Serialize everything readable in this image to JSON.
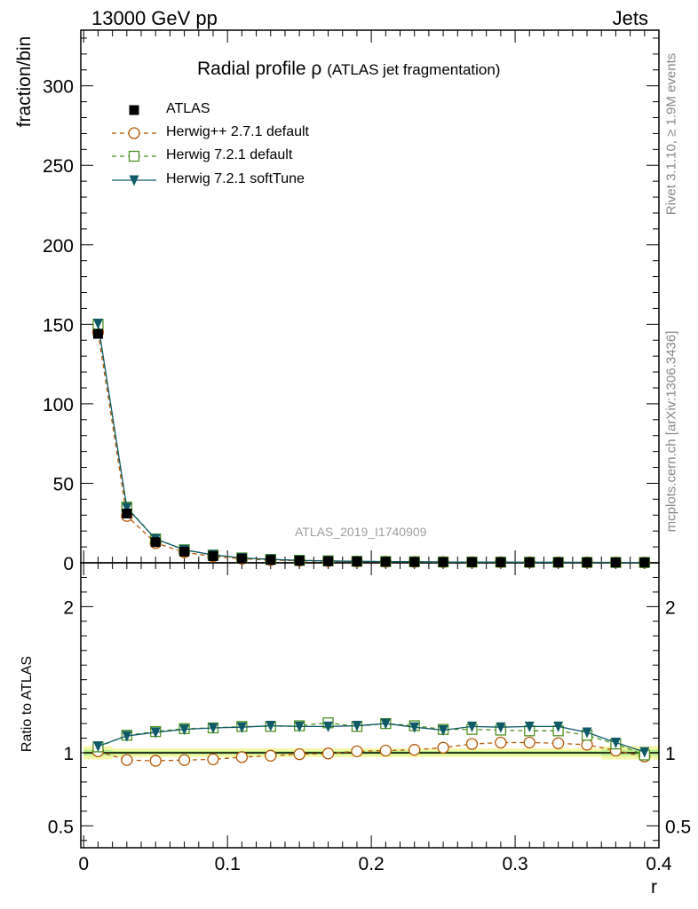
{
  "header": {
    "energy": "13000 GeV pp",
    "process": "Jets"
  },
  "side_text": {
    "rivet": "Rivet 3.1.10, ≥ 1.9M events",
    "mcplots": "mcplots.cern.ch [arXiv:1306.3436]"
  },
  "chart_data": {
    "type": "line",
    "title": "Radial profile ρ",
    "subtitle": "(ATLAS jet fragmentation)",
    "watermark": "ATLAS_2019_I1740909",
    "xlabel": "r",
    "ylabel_top": "fraction/bin",
    "ylabel_bottom": "Ratio to ATLAS",
    "xlim": [
      -0.002,
      0.4
    ],
    "ylim_top": [
      0,
      335
    ],
    "ylim_bottom": [
      0.35,
      2.3
    ],
    "xticks": [
      "0",
      "0.1",
      "0.2",
      "0.3",
      "0.4"
    ],
    "yticks_top": [
      "0",
      "50",
      "100",
      "150",
      "200",
      "250",
      "300"
    ],
    "yticks_bottom": [
      "0.5",
      "1",
      "2"
    ],
    "legend_position": "top-left",
    "x": [
      0.01,
      0.03,
      0.05,
      0.07,
      0.09,
      0.11,
      0.13,
      0.15,
      0.17,
      0.19,
      0.21,
      0.23,
      0.25,
      0.27,
      0.29,
      0.31,
      0.33,
      0.35,
      0.37,
      0.39
    ],
    "series": [
      {
        "name": "ATLAS",
        "color": "#000000",
        "marker": "square-filled",
        "values": [
          144.0,
          31.0,
          13.0,
          7.0,
          4.2,
          2.6,
          1.8,
          1.3,
          1.0,
          0.8,
          0.65,
          0.55,
          0.45,
          0.4,
          0.35,
          0.3,
          0.27,
          0.24,
          0.22,
          0.2
        ],
        "ratio": [
          1,
          1,
          1,
          1,
          1,
          1,
          1,
          1,
          1,
          1,
          1,
          1,
          1,
          1,
          1,
          1,
          1,
          1,
          1,
          1
        ]
      },
      {
        "name": "Herwig++ 2.7.1 default",
        "color": "#b35806",
        "marker": "circle-open",
        "dash": "5,4",
        "values": [
          145.0,
          29.5,
          12.4,
          6.7,
          4.0,
          2.5,
          1.76,
          1.29,
          1.0,
          0.81,
          0.66,
          0.56,
          0.47,
          0.43,
          0.38,
          0.33,
          0.29,
          0.26,
          0.22,
          0.19
        ],
        "ratio": [
          1.01,
          0.95,
          0.945,
          0.95,
          0.955,
          0.97,
          0.98,
          0.99,
          0.995,
          1.01,
          1.015,
          1.02,
          1.035,
          1.06,
          1.07,
          1.07,
          1.065,
          1.055,
          1.015,
          0.975
        ]
      },
      {
        "name": "Herwig 7.2.1 default",
        "color": "#4d9221",
        "marker": "square-open",
        "dash": "5,4",
        "values": [
          150.0,
          35.0,
          15.0,
          8.2,
          4.9,
          3.08,
          2.15,
          1.58,
          1.23,
          0.94,
          0.79,
          0.65,
          0.52,
          0.46,
          0.41,
          0.35,
          0.31,
          0.27,
          0.23,
          0.2
        ],
        "ratio": [
          1.04,
          1.12,
          1.145,
          1.165,
          1.17,
          1.18,
          1.18,
          1.185,
          1.205,
          1.18,
          1.2,
          1.185,
          1.16,
          1.16,
          1.155,
          1.15,
          1.15,
          1.12,
          1.06,
          0.985
        ]
      },
      {
        "name": "Herwig 7.2.1 softTune",
        "color": "#105a68",
        "marker": "triangle-down-filled",
        "dash": "",
        "values": [
          150.5,
          34.6,
          15.0,
          8.2,
          4.95,
          3.06,
          2.14,
          1.53,
          1.18,
          0.95,
          0.78,
          0.65,
          0.52,
          0.47,
          0.41,
          0.35,
          0.31,
          0.27,
          0.23,
          0.2
        ],
        "ratio": [
          1.045,
          1.115,
          1.14,
          1.16,
          1.17,
          1.175,
          1.185,
          1.18,
          1.18,
          1.185,
          1.2,
          1.175,
          1.155,
          1.18,
          1.175,
          1.18,
          1.18,
          1.14,
          1.07,
          1.005
        ]
      }
    ]
  }
}
